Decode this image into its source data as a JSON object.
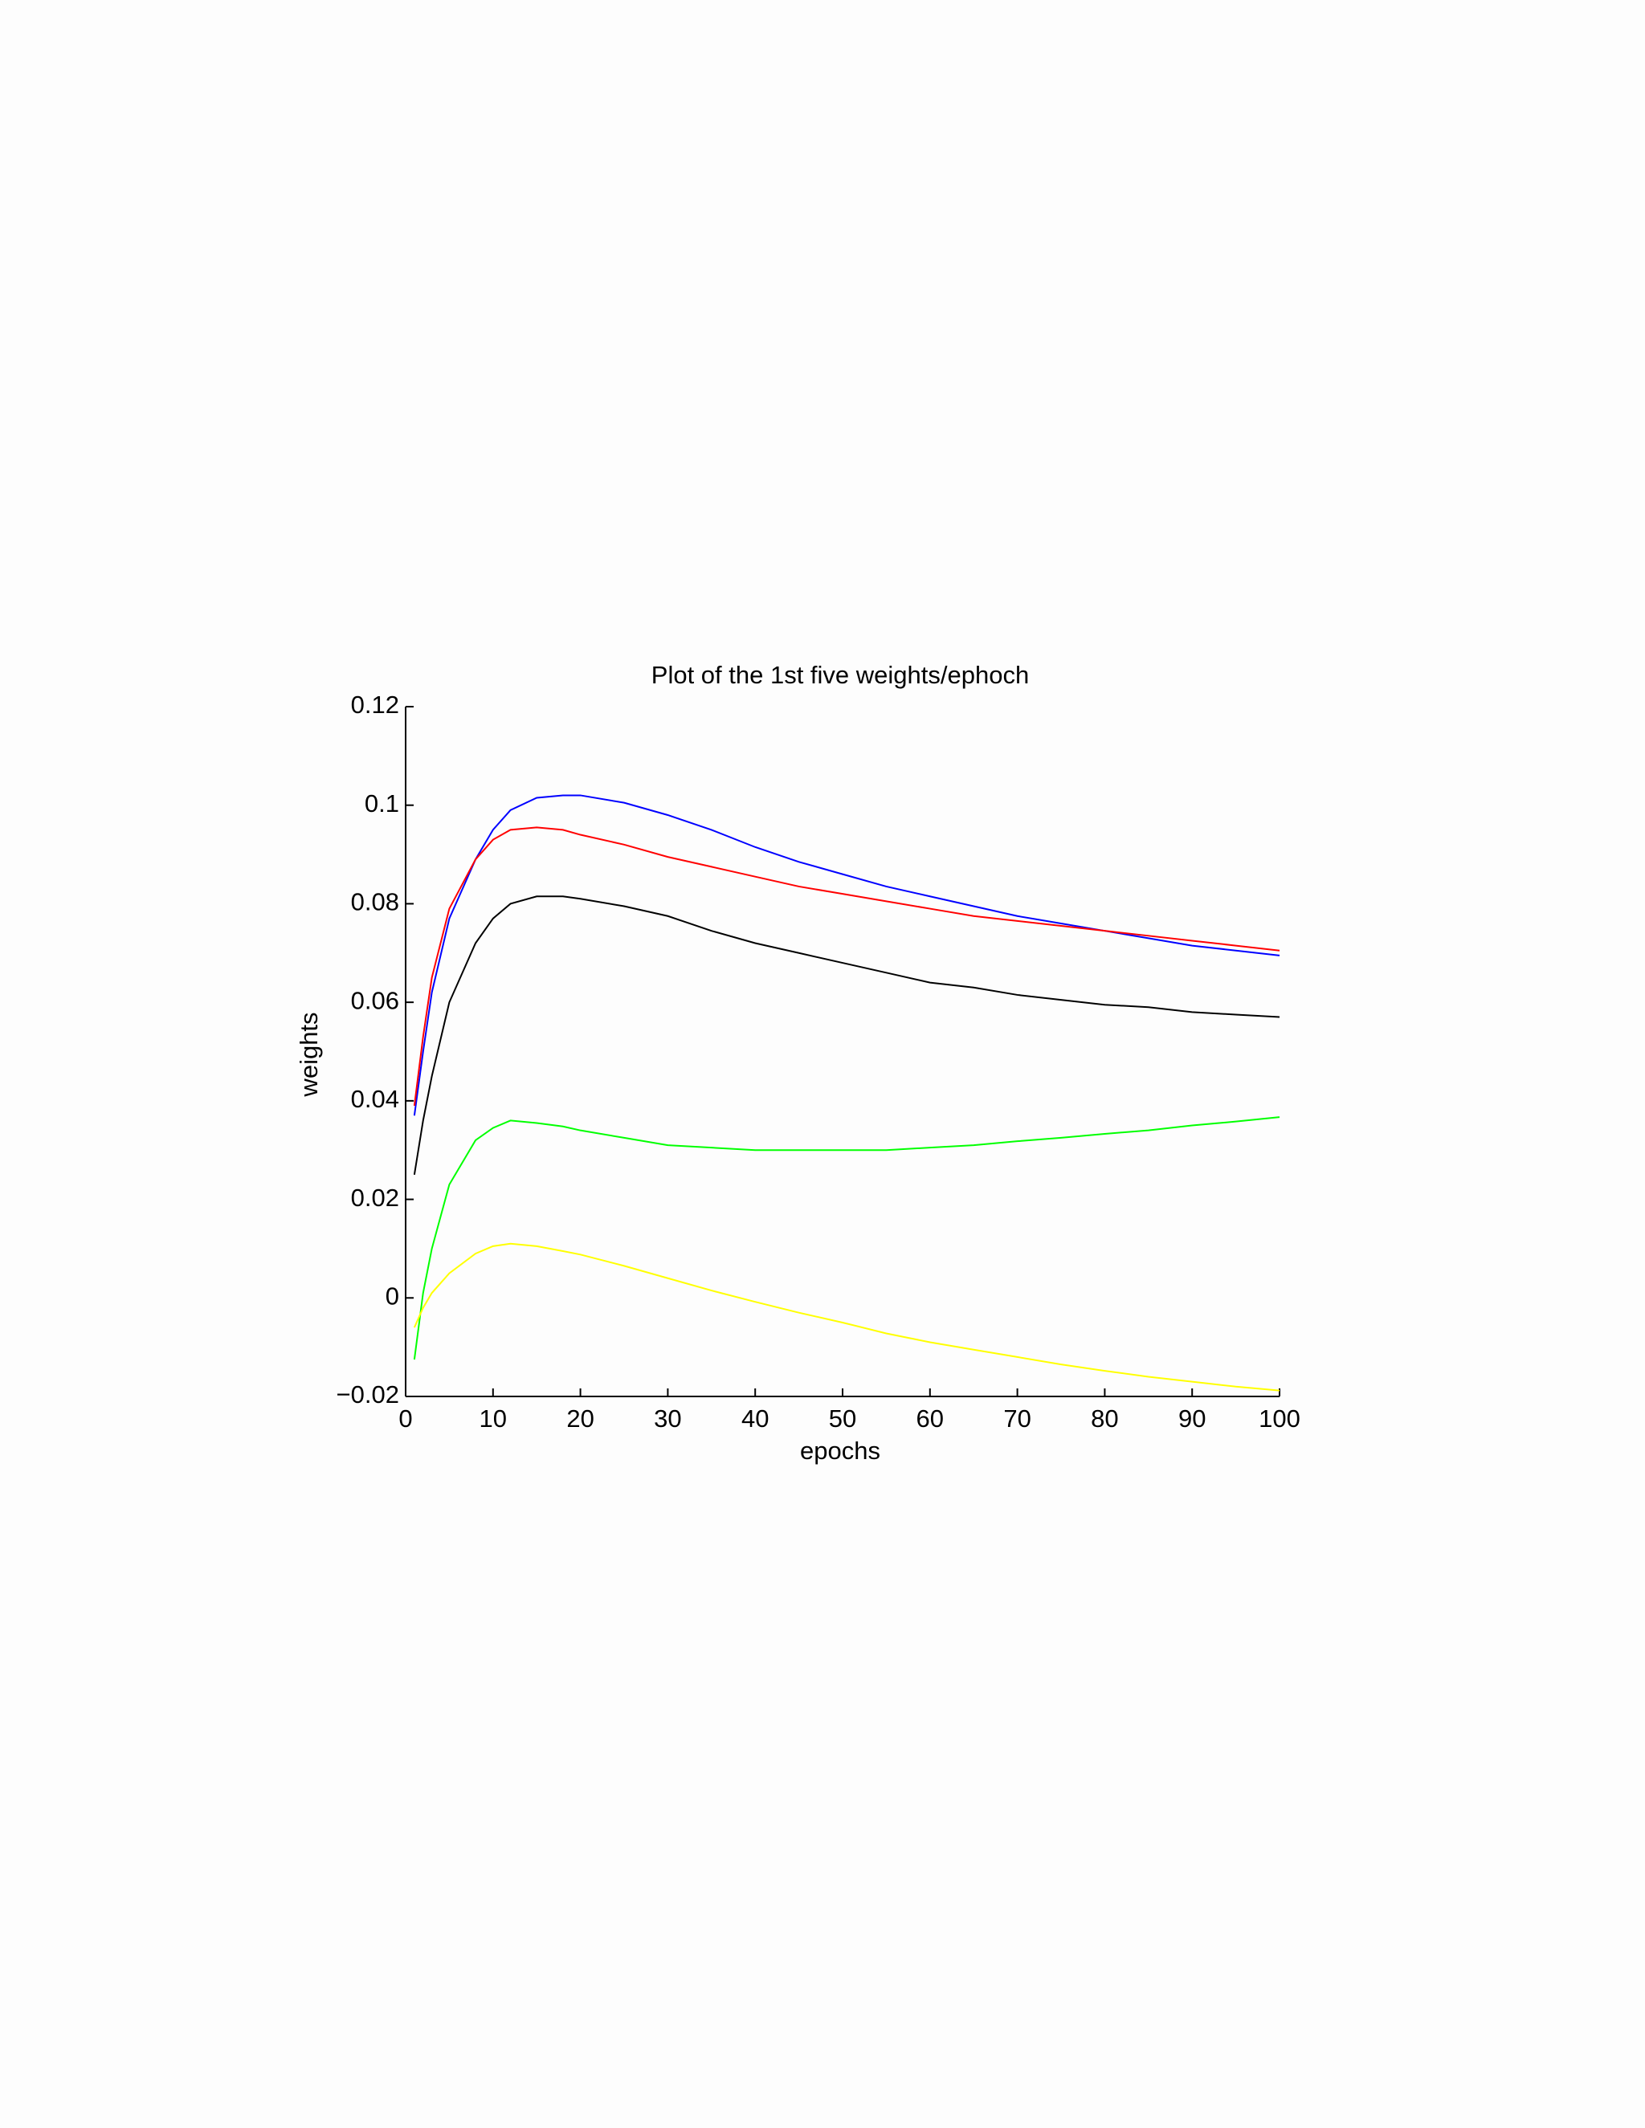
{
  "chart_data": {
    "type": "line",
    "title": "Plot of the 1st five weights/ephoch",
    "x_label": "epochs",
    "y_label": "weights",
    "x": [
      1,
      2,
      3,
      5,
      8,
      10,
      12,
      15,
      18,
      20,
      25,
      30,
      35,
      40,
      45,
      50,
      55,
      60,
      65,
      70,
      75,
      80,
      85,
      90,
      95,
      100
    ],
    "series": [
      {
        "color": "#0000ff",
        "values": [
          0.037,
          0.05,
          0.062,
          0.077,
          0.089,
          0.095,
          0.099,
          0.1015,
          0.102,
          0.102,
          0.1005,
          0.098,
          0.095,
          0.0915,
          0.0885,
          0.086,
          0.0835,
          0.0815,
          0.0795,
          0.0775,
          0.076,
          0.0745,
          0.073,
          0.0715,
          0.0705,
          0.0695
        ]
      },
      {
        "color": "#ff0000",
        "values": [
          0.039,
          0.053,
          0.065,
          0.079,
          0.089,
          0.093,
          0.095,
          0.0955,
          0.095,
          0.094,
          0.092,
          0.0895,
          0.0875,
          0.0855,
          0.0835,
          0.082,
          0.0805,
          0.079,
          0.0775,
          0.0765,
          0.0755,
          0.0745,
          0.0735,
          0.0725,
          0.0715,
          0.0705
        ]
      },
      {
        "color": "#000000",
        "values": [
          0.025,
          0.036,
          0.045,
          0.06,
          0.072,
          0.077,
          0.08,
          0.0815,
          0.0815,
          0.081,
          0.0795,
          0.0775,
          0.0745,
          0.072,
          0.07,
          0.068,
          0.066,
          0.064,
          0.063,
          0.0615,
          0.0605,
          0.0595,
          0.059,
          0.058,
          0.0575,
          0.057
        ]
      },
      {
        "color": "#00ff00",
        "values": [
          -0.0125,
          0.001,
          0.01,
          0.023,
          0.032,
          0.0345,
          0.036,
          0.0355,
          0.0348,
          0.034,
          0.0325,
          0.031,
          0.0305,
          0.03,
          0.03,
          0.03,
          0.03,
          0.0305,
          0.031,
          0.0318,
          0.0325,
          0.0333,
          0.034,
          0.035,
          0.0358,
          0.0367
        ]
      },
      {
        "color": "#ffff00",
        "values": [
          -0.006,
          -0.002,
          0.001,
          0.005,
          0.009,
          0.0105,
          0.011,
          0.0105,
          0.0095,
          0.0088,
          0.0065,
          0.004,
          0.0015,
          -0.0008,
          -0.003,
          -0.005,
          -0.0072,
          -0.009,
          -0.0105,
          -0.012,
          -0.0135,
          -0.0148,
          -0.016,
          -0.017,
          -0.018,
          -0.0188
        ]
      }
    ],
    "xlim": [
      0,
      100
    ],
    "xticks": [
      0,
      10,
      20,
      30,
      40,
      50,
      60,
      70,
      80,
      90,
      100
    ],
    "ylim": [
      -0.02,
      0.12
    ],
    "yticks": [
      {
        "value": -0.02,
        "label": "−0.02"
      },
      0,
      0.02,
      0.04,
      0.06,
      0.08,
      0.1,
      0.12
    ]
  }
}
